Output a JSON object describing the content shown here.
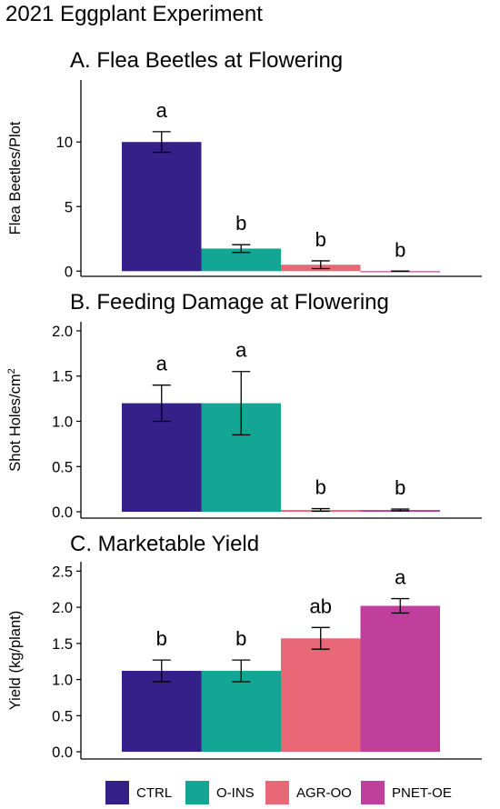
{
  "figure_title": "2021 Eggplant Experiment",
  "colors": {
    "CTRL": "#35208A",
    "O-INS": "#14A694",
    "AGR-OO": "#E86877",
    "PNET-OE": "#C03F9C"
  },
  "legend": [
    "CTRL",
    "O-INS",
    "AGR-OO",
    "PNET-OE"
  ],
  "chart_data": [
    {
      "type": "bar",
      "title": "A. Flea Beetles at Flowering",
      "ylabel": "Flea Beetles/Plot",
      "ylabel_sup": "",
      "categories": [
        "CTRL",
        "O-INS",
        "AGR-OO",
        "PNET-OE"
      ],
      "values": [
        10.0,
        1.75,
        0.5,
        0.0
      ],
      "errors": [
        0.8,
        0.3,
        0.3,
        0.0
      ],
      "letters": [
        "a",
        "b",
        "b",
        "b"
      ],
      "ylim": [
        -0.4,
        14.8
      ],
      "yticks": [
        0,
        5,
        10
      ],
      "ytick_labels": [
        "0",
        "5",
        "10"
      ]
    },
    {
      "type": "bar",
      "title": "B. Feeding Damage at Flowering",
      "ylabel": "Shot Holes/cm",
      "ylabel_sup": "2",
      "categories": [
        "CTRL",
        "O-INS",
        "AGR-OO",
        "PNET-OE"
      ],
      "values": [
        1.2,
        1.2,
        0.02,
        0.02
      ],
      "errors": [
        0.2,
        0.35,
        0.015,
        0.01
      ],
      "letters": [
        "a",
        "a",
        "b",
        "b"
      ],
      "ylim": [
        -0.07,
        2.1
      ],
      "yticks": [
        0,
        0.5,
        1.0,
        1.5,
        2.0
      ],
      "ytick_labels": [
        "0.0",
        "0.5",
        "1.0",
        "1.5",
        "2.0"
      ]
    },
    {
      "type": "bar",
      "title": "C. Marketable Yield",
      "ylabel": "Yield (kg/plant)",
      "ylabel_sup": "",
      "categories": [
        "CTRL",
        "O-INS",
        "AGR-OO",
        "PNET-OE"
      ],
      "values": [
        1.12,
        1.12,
        1.57,
        2.02
      ],
      "errors": [
        0.15,
        0.15,
        0.15,
        0.1
      ],
      "letters": [
        "b",
        "b",
        "ab",
        "a"
      ],
      "ylim": [
        -0.1,
        2.63
      ],
      "yticks": [
        0,
        0.5,
        1.0,
        1.5,
        2.0,
        2.5
      ],
      "ytick_labels": [
        "0.0",
        "0.5",
        "1.0",
        "1.5",
        "2.0",
        "2.5"
      ]
    }
  ]
}
